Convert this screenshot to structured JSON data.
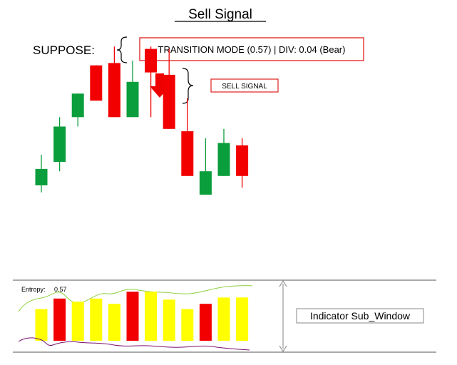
{
  "title": "Sell Signal",
  "suppose_label": "SUPPOSE:",
  "transition_text": "TRANSITION MODE (0.57) | DIV: 0.04 (Bear)",
  "signal_label": "SELL SIGNAL",
  "sub_window_label": "Indicator Sub_Window",
  "entropy_label": "Entropy:",
  "entropy_value": "0.57",
  "colors": {
    "bull": "#0a9e3c",
    "bear": "#f20000",
    "neutral_bar": "#ffff00",
    "accent_red": "#e02020",
    "entropy_upper_line": "#8fd13f",
    "entropy_lower_line": "#7b1070"
  },
  "chart_data": {
    "type": "candlestick",
    "candles": [
      {
        "dir": "bull",
        "open": 40,
        "close": 47,
        "low": 37,
        "high": 53
      },
      {
        "dir": "bull",
        "open": 50,
        "close": 65,
        "low": 46,
        "high": 69
      },
      {
        "dir": "bull",
        "open": 69,
        "close": 79,
        "low": 65,
        "high": 79
      },
      {
        "dir": "bear",
        "open": 91,
        "close": 76,
        "low": 76,
        "high": 91
      },
      {
        "dir": "bear",
        "open": 92,
        "close": 69,
        "low": 69,
        "high": 99
      },
      {
        "dir": "bull",
        "open": 69,
        "close": 84,
        "low": 69,
        "high": 93
      },
      {
        "dir": "bear",
        "open": 98,
        "close": 88,
        "low": 69,
        "high": 99
      },
      {
        "dir": "bear",
        "open": 87,
        "close": 64,
        "low": 64,
        "high": 98
      },
      {
        "dir": "bear",
        "open": 63,
        "close": 44,
        "low": 44,
        "high": 77
      },
      {
        "dir": "bull",
        "open": 36,
        "close": 46,
        "low": 36,
        "high": 60
      },
      {
        "dir": "bull",
        "open": 44,
        "close": 58,
        "low": 44,
        "high": 64
      },
      {
        "dir": "bear",
        "open": 57,
        "close": 44,
        "low": 39,
        "high": 60
      }
    ],
    "signal_candle_index": 6,
    "indicator_bars": [
      {
        "color": "yellow",
        "value": 60
      },
      {
        "color": "red",
        "value": 80
      },
      {
        "color": "yellow",
        "value": 74
      },
      {
        "color": "yellow",
        "value": 80
      },
      {
        "color": "yellow",
        "value": 70
      },
      {
        "color": "red",
        "value": 93
      },
      {
        "color": "yellow",
        "value": 93
      },
      {
        "color": "yellow",
        "value": 78
      },
      {
        "color": "yellow",
        "value": 60
      },
      {
        "color": "red",
        "value": 70
      },
      {
        "color": "yellow",
        "value": 82
      },
      {
        "color": "yellow",
        "value": 82
      }
    ]
  }
}
